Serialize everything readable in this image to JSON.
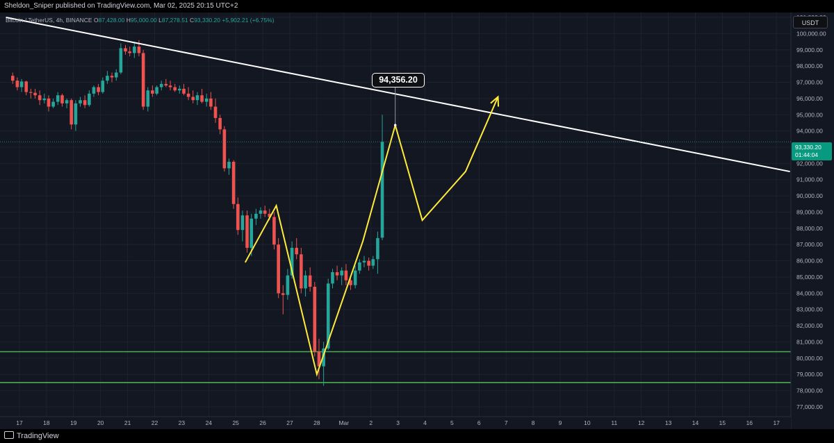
{
  "header": {
    "publisher": "Sheldon_Sniper published on TradingView.com, Mar 02, 2025 20:15 UTC+2"
  },
  "footer": {
    "brand": "TradingView"
  },
  "colors": {
    "background": "#131722",
    "bullish": "#26a69a",
    "bearish": "#ef5350",
    "trendline": "#ffffff",
    "projection": "#ffeb3b",
    "support": "#4caf50",
    "price_tag": "#089981"
  },
  "chart_data": {
    "type": "candlestick",
    "symbol_line": {
      "symbol": "Bitcoin / TetherUS, 4h, BINANCE",
      "open_label": "O",
      "open": "87,428.00",
      "high_label": "H",
      "high": "95,000.00",
      "low_label": "L",
      "low": "87,278.51",
      "close_label": "C",
      "close": "93,330.20",
      "change": "+5,902.21 (+6.75%)"
    },
    "currency": "USDT",
    "last_price": "93,330.20",
    "countdown": "01:44:04",
    "callout_label": "94,356.20",
    "ylim": [
      76400,
      101300
    ],
    "y_ticks": [
      "101,000.00",
      "100,000.00",
      "99,000.00",
      "98,000.00",
      "97,000.00",
      "96,000.00",
      "95,000.00",
      "94,000.00",
      "93,000.00",
      "92,000.00",
      "91,000.00",
      "90,000.00",
      "89,000.00",
      "88,000.00",
      "87,000.00",
      "86,000.00",
      "85,000.00",
      "84,000.00",
      "83,000.00",
      "82,000.00",
      "81,000.00",
      "80,000.00",
      "79,000.00",
      "78,000.00",
      "77,000.00"
    ],
    "x_ticks": [
      {
        "label": "17",
        "day": 17
      },
      {
        "label": "18",
        "day": 18
      },
      {
        "label": "19",
        "day": 19
      },
      {
        "label": "20",
        "day": 20
      },
      {
        "label": "21",
        "day": 21
      },
      {
        "label": "22",
        "day": 22
      },
      {
        "label": "23",
        "day": 23
      },
      {
        "label": "24",
        "day": 24
      },
      {
        "label": "25",
        "day": 25
      },
      {
        "label": "26",
        "day": 26
      },
      {
        "label": "27",
        "day": 27
      },
      {
        "label": "28",
        "day": 28
      },
      {
        "label": "Mar",
        "day": 29
      },
      {
        "label": "2",
        "day": 30
      },
      {
        "label": "3",
        "day": 31
      },
      {
        "label": "4",
        "day": 32
      },
      {
        "label": "5",
        "day": 33
      },
      {
        "label": "6",
        "day": 34
      },
      {
        "label": "7",
        "day": 35
      },
      {
        "label": "8",
        "day": 36
      },
      {
        "label": "9",
        "day": 37
      },
      {
        "label": "10",
        "day": 38
      },
      {
        "label": "11",
        "day": 39
      },
      {
        "label": "12",
        "day": 40
      },
      {
        "label": "13",
        "day": 41
      },
      {
        "label": "14",
        "day": 42
      },
      {
        "label": "15",
        "day": 43
      },
      {
        "label": "16",
        "day": 44
      },
      {
        "label": "17",
        "day": 45
      }
    ],
    "candles": [
      {
        "t": 16.75,
        "o": 97400,
        "h": 97600,
        "l": 96900,
        "c": 97100
      },
      {
        "t": 16.92,
        "o": 97100,
        "h": 97300,
        "l": 96500,
        "c": 96700
      },
      {
        "t": 17.08,
        "o": 96700,
        "h": 97200,
        "l": 96400,
        "c": 97050
      },
      {
        "t": 17.25,
        "o": 97050,
        "h": 97100,
        "l": 96200,
        "c": 96400
      },
      {
        "t": 17.42,
        "o": 96400,
        "h": 96600,
        "l": 96000,
        "c": 96350
      },
      {
        "t": 17.58,
        "o": 96350,
        "h": 96600,
        "l": 96000,
        "c": 96200
      },
      {
        "t": 17.75,
        "o": 96200,
        "h": 96500,
        "l": 95600,
        "c": 95900
      },
      {
        "t": 17.92,
        "o": 95900,
        "h": 96300,
        "l": 95700,
        "c": 96000
      },
      {
        "t": 18.08,
        "o": 96000,
        "h": 96200,
        "l": 95200,
        "c": 95500
      },
      {
        "t": 18.25,
        "o": 95500,
        "h": 96000,
        "l": 95400,
        "c": 95800
      },
      {
        "t": 18.42,
        "o": 95800,
        "h": 96400,
        "l": 95600,
        "c": 96200
      },
      {
        "t": 18.58,
        "o": 96200,
        "h": 96300,
        "l": 95500,
        "c": 95700
      },
      {
        "t": 18.75,
        "o": 95700,
        "h": 96000,
        "l": 95400,
        "c": 95900
      },
      {
        "t": 18.92,
        "o": 95900,
        "h": 96000,
        "l": 94100,
        "c": 94400
      },
      {
        "t": 19.08,
        "o": 94400,
        "h": 95900,
        "l": 94000,
        "c": 95700
      },
      {
        "t": 19.25,
        "o": 95700,
        "h": 96100,
        "l": 95500,
        "c": 95900
      },
      {
        "t": 19.42,
        "o": 95900,
        "h": 96200,
        "l": 95400,
        "c": 95600
      },
      {
        "t": 19.58,
        "o": 95600,
        "h": 96500,
        "l": 95500,
        "c": 96300
      },
      {
        "t": 19.75,
        "o": 96300,
        "h": 96800,
        "l": 96100,
        "c": 96700
      },
      {
        "t": 19.92,
        "o": 96700,
        "h": 96900,
        "l": 96200,
        "c": 96400
      },
      {
        "t": 20.08,
        "o": 96400,
        "h": 97300,
        "l": 96300,
        "c": 97100
      },
      {
        "t": 20.25,
        "o": 97100,
        "h": 97700,
        "l": 96900,
        "c": 97400
      },
      {
        "t": 20.42,
        "o": 97400,
        "h": 97600,
        "l": 97000,
        "c": 97300
      },
      {
        "t": 20.58,
        "o": 97300,
        "h": 97800,
        "l": 97100,
        "c": 97600
      },
      {
        "t": 20.75,
        "o": 97600,
        "h": 99400,
        "l": 97500,
        "c": 99100
      },
      {
        "t": 20.92,
        "o": 99100,
        "h": 99300,
        "l": 98700,
        "c": 98900
      },
      {
        "t": 21.08,
        "o": 98900,
        "h": 99200,
        "l": 98600,
        "c": 98800
      },
      {
        "t": 21.25,
        "o": 98800,
        "h": 99500,
        "l": 98500,
        "c": 99200
      },
      {
        "t": 21.42,
        "o": 99200,
        "h": 99600,
        "l": 98600,
        "c": 98800
      },
      {
        "t": 21.58,
        "o": 98800,
        "h": 99000,
        "l": 95300,
        "c": 95500
      },
      {
        "t": 21.75,
        "o": 95500,
        "h": 96700,
        "l": 95200,
        "c": 96500
      },
      {
        "t": 21.92,
        "o": 96500,
        "h": 96800,
        "l": 96100,
        "c": 96300
      },
      {
        "t": 22.08,
        "o": 96300,
        "h": 96800,
        "l": 96200,
        "c": 96700
      },
      {
        "t": 22.25,
        "o": 96700,
        "h": 97100,
        "l": 96500,
        "c": 96900
      },
      {
        "t": 22.42,
        "o": 96900,
        "h": 97200,
        "l": 96700,
        "c": 96800
      },
      {
        "t": 22.58,
        "o": 96800,
        "h": 97100,
        "l": 96500,
        "c": 96700
      },
      {
        "t": 22.75,
        "o": 96700,
        "h": 96900,
        "l": 96400,
        "c": 96500
      },
      {
        "t": 22.92,
        "o": 96500,
        "h": 96800,
        "l": 96300,
        "c": 96600
      },
      {
        "t": 23.08,
        "o": 96600,
        "h": 96900,
        "l": 96200,
        "c": 96300
      },
      {
        "t": 23.25,
        "o": 96300,
        "h": 96700,
        "l": 95900,
        "c": 96100
      },
      {
        "t": 23.42,
        "o": 96100,
        "h": 96500,
        "l": 95700,
        "c": 95900
      },
      {
        "t": 23.58,
        "o": 95900,
        "h": 96400,
        "l": 95600,
        "c": 96200
      },
      {
        "t": 23.75,
        "o": 96200,
        "h": 96600,
        "l": 95700,
        "c": 95800
      },
      {
        "t": 23.92,
        "o": 95800,
        "h": 96300,
        "l": 95500,
        "c": 96000
      },
      {
        "t": 24.08,
        "o": 96000,
        "h": 96400,
        "l": 95300,
        "c": 95500
      },
      {
        "t": 24.25,
        "o": 95500,
        "h": 96000,
        "l": 94500,
        "c": 94800
      },
      {
        "t": 24.42,
        "o": 94800,
        "h": 95000,
        "l": 93800,
        "c": 94100
      },
      {
        "t": 24.58,
        "o": 94100,
        "h": 94300,
        "l": 91500,
        "c": 91700
      },
      {
        "t": 24.75,
        "o": 91700,
        "h": 92300,
        "l": 91300,
        "c": 92100
      },
      {
        "t": 24.92,
        "o": 92100,
        "h": 92200,
        "l": 89200,
        "c": 89500
      },
      {
        "t": 25.08,
        "o": 89500,
        "h": 89900,
        "l": 87600,
        "c": 87900
      },
      {
        "t": 25.25,
        "o": 87900,
        "h": 89100,
        "l": 87200,
        "c": 88800
      },
      {
        "t": 25.42,
        "o": 88800,
        "h": 89100,
        "l": 86500,
        "c": 86800
      },
      {
        "t": 25.58,
        "o": 86800,
        "h": 88900,
        "l": 86300,
        "c": 88600
      },
      {
        "t": 25.75,
        "o": 88600,
        "h": 89200,
        "l": 88200,
        "c": 88900
      },
      {
        "t": 25.92,
        "o": 88900,
        "h": 89300,
        "l": 88600,
        "c": 89100
      },
      {
        "t": 26.08,
        "o": 89100,
        "h": 89400,
        "l": 88700,
        "c": 88900
      },
      {
        "t": 26.25,
        "o": 88900,
        "h": 89200,
        "l": 88500,
        "c": 88700
      },
      {
        "t": 26.42,
        "o": 88700,
        "h": 89000,
        "l": 86700,
        "c": 87000
      },
      {
        "t": 26.58,
        "o": 87000,
        "h": 87400,
        "l": 83700,
        "c": 84000
      },
      {
        "t": 26.75,
        "o": 84000,
        "h": 84500,
        "l": 82700,
        "c": 83900
      },
      {
        "t": 26.92,
        "o": 83900,
        "h": 85500,
        "l": 83600,
        "c": 85100
      },
      {
        "t": 27.08,
        "o": 85100,
        "h": 87200,
        "l": 84900,
        "c": 86800
      },
      {
        "t": 27.25,
        "o": 86800,
        "h": 87400,
        "l": 86100,
        "c": 86400
      },
      {
        "t": 27.42,
        "o": 86400,
        "h": 86800,
        "l": 84000,
        "c": 84300
      },
      {
        "t": 27.58,
        "o": 84300,
        "h": 85400,
        "l": 83800,
        "c": 85100
      },
      {
        "t": 27.75,
        "o": 85100,
        "h": 85600,
        "l": 84100,
        "c": 84400
      },
      {
        "t": 27.92,
        "o": 84400,
        "h": 84700,
        "l": 80100,
        "c": 80400
      },
      {
        "t": 28.08,
        "o": 80400,
        "h": 81200,
        "l": 78700,
        "c": 79500
      },
      {
        "t": 28.25,
        "o": 79500,
        "h": 81000,
        "l": 78300,
        "c": 80600
      },
      {
        "t": 28.42,
        "o": 80600,
        "h": 84900,
        "l": 80500,
        "c": 84600
      },
      {
        "t": 28.58,
        "o": 84600,
        "h": 85500,
        "l": 84300,
        "c": 85300
      },
      {
        "t": 28.75,
        "o": 85300,
        "h": 85700,
        "l": 84800,
        "c": 85100
      },
      {
        "t": 28.92,
        "o": 85100,
        "h": 85600,
        "l": 84500,
        "c": 85400
      },
      {
        "t": 29.08,
        "o": 85400,
        "h": 85800,
        "l": 84500,
        "c": 84800
      },
      {
        "t": 29.25,
        "o": 84800,
        "h": 85100,
        "l": 84200,
        "c": 84500
      },
      {
        "t": 29.42,
        "o": 84500,
        "h": 85700,
        "l": 84300,
        "c": 85400
      },
      {
        "t": 29.58,
        "o": 85400,
        "h": 86100,
        "l": 85200,
        "c": 85900
      },
      {
        "t": 29.75,
        "o": 85900,
        "h": 86300,
        "l": 85600,
        "c": 86000
      },
      {
        "t": 29.92,
        "o": 86000,
        "h": 86200,
        "l": 85400,
        "c": 85700
      },
      {
        "t": 30.08,
        "o": 85700,
        "h": 86300,
        "l": 85500,
        "c": 86100
      },
      {
        "t": 30.25,
        "o": 86100,
        "h": 87800,
        "l": 85200,
        "c": 87400
      },
      {
        "t": 30.42,
        "o": 87428,
        "h": 95000,
        "l": 87278.51,
        "c": 93330.2
      }
    ],
    "trendline": {
      "from": [
        16.5,
        101000
      ],
      "to": [
        45.5,
        91500
      ]
    },
    "projection_lines": [
      {
        "points": [
          [
            25.35,
            85900
          ],
          [
            26.5,
            89400
          ],
          [
            28.0,
            79000
          ],
          [
            29.7,
            87200
          ],
          [
            30.9,
            94356.2
          ],
          [
            31.9,
            88500
          ],
          [
            33.5,
            91500
          ],
          [
            34.7,
            96100
          ]
        ]
      }
    ],
    "support_levels": [
      80400,
      78500
    ]
  }
}
